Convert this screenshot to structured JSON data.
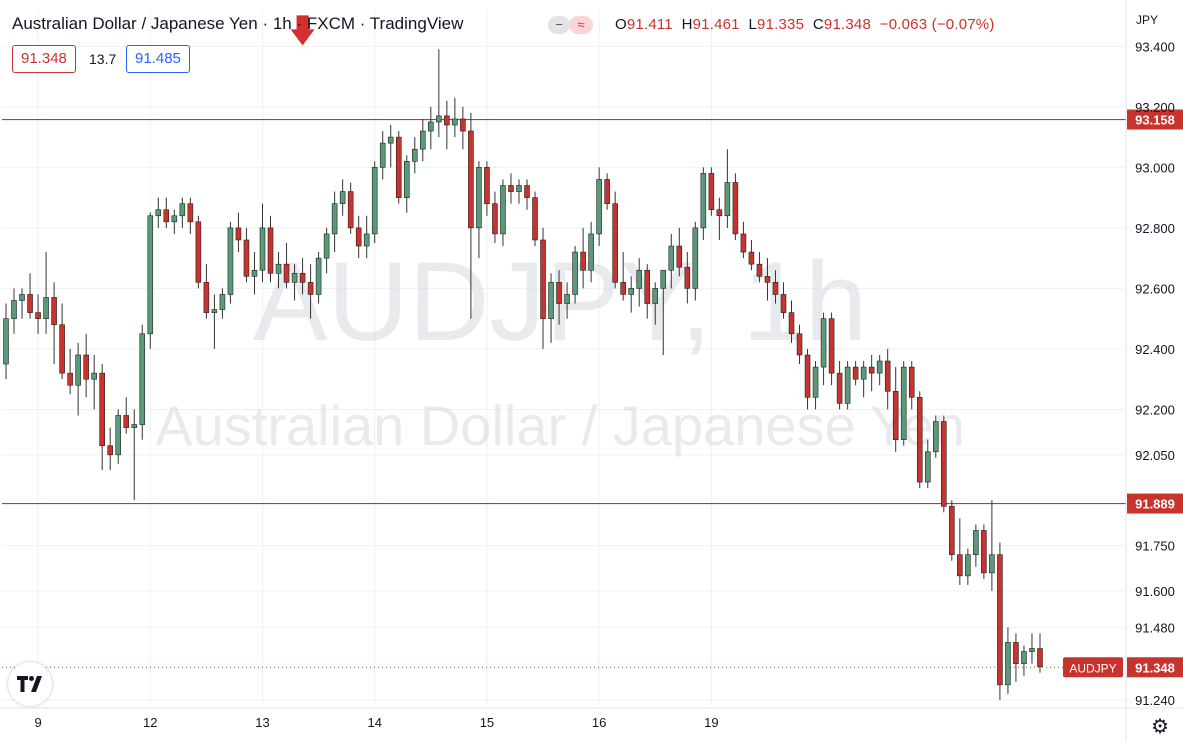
{
  "header": {
    "title": "Australian Dollar / Japanese Yen · 1h · FXCM · TradingView",
    "ohlc": {
      "o_label": "O",
      "o": "91.411",
      "h_label": "H",
      "h": "91.461",
      "l_label": "L",
      "l": "91.335",
      "c_label": "C",
      "c": "91.348",
      "change": "−0.063 (−0.07%)"
    },
    "pill_minus": "−",
    "pill_wave": "≈"
  },
  "badges": {
    "bid": "91.348",
    "spread": "13.7",
    "ask": "91.485"
  },
  "currency": "JPY",
  "watermark": {
    "symbol": "AUDJPY, 1h",
    "name": "Australian Dollar / Japanese Yen"
  },
  "colors": {
    "up": "#5b9a78",
    "down": "#c8332e",
    "level": "#c8332e",
    "grid": "#eef0f3",
    "text": "#131722",
    "ask": "#2962ff"
  },
  "icons": {
    "logo": "tradingview-logo-icon",
    "settings": "gear-icon",
    "arrow": "arrow-down-icon"
  },
  "chart_data": {
    "type": "candlestick",
    "title": "Australian Dollar / Japanese Yen · 1h · FXCM · TradingView",
    "ylim": [
      91.22,
      93.52
    ],
    "y_ticks": [
      "93.400",
      "93.200",
      "93.000",
      "92.800",
      "92.600",
      "92.400",
      "92.200",
      "92.050",
      "91.750",
      "91.600",
      "91.480",
      "91.240"
    ],
    "x_ticks": [
      {
        "label": "9",
        "index": 4
      },
      {
        "label": "12",
        "index": 18
      },
      {
        "label": "13",
        "index": 32
      },
      {
        "label": "14",
        "index": 46
      },
      {
        "label": "15",
        "index": 60
      },
      {
        "label": "16",
        "index": 74
      },
      {
        "label": "19",
        "index": 88
      }
    ],
    "horizontal_levels": [
      {
        "value": 93.158,
        "label": "93.158"
      },
      {
        "value": 91.889,
        "label": "91.889"
      }
    ],
    "last_price": {
      "value": 91.348,
      "label": "91.348",
      "symbol": "AUDJPY"
    },
    "annotation": {
      "type": "arrow-down",
      "at_index": 37,
      "price": 93.39
    },
    "candles": [
      [
        92.35,
        92.55,
        92.3,
        92.5
      ],
      [
        92.5,
        92.6,
        92.45,
        92.56
      ],
      [
        92.56,
        92.6,
        92.5,
        92.58
      ],
      [
        92.58,
        92.65,
        92.5,
        92.52
      ],
      [
        92.52,
        92.58,
        92.45,
        92.5
      ],
      [
        92.5,
        92.72,
        92.45,
        92.57
      ],
      [
        92.57,
        92.62,
        92.35,
        92.48
      ],
      [
        92.48,
        92.55,
        92.3,
        92.32
      ],
      [
        92.32,
        92.4,
        92.25,
        92.28
      ],
      [
        92.28,
        92.42,
        92.18,
        92.38
      ],
      [
        92.38,
        92.45,
        92.24,
        92.3
      ],
      [
        92.3,
        92.38,
        92.2,
        92.32
      ],
      [
        92.32,
        92.35,
        92.0,
        92.08
      ],
      [
        92.08,
        92.14,
        92.0,
        92.05
      ],
      [
        92.05,
        92.2,
        92.02,
        92.18
      ],
      [
        92.18,
        92.24,
        92.12,
        92.14
      ],
      [
        92.14,
        92.2,
        91.9,
        92.15
      ],
      [
        92.15,
        92.48,
        92.1,
        92.45
      ],
      [
        92.45,
        92.85,
        92.4,
        92.84
      ],
      [
        92.84,
        92.9,
        92.8,
        92.86
      ],
      [
        92.86,
        92.9,
        92.8,
        92.82
      ],
      [
        92.82,
        92.86,
        92.78,
        92.84
      ],
      [
        92.84,
        92.9,
        92.8,
        92.88
      ],
      [
        92.88,
        92.9,
        92.78,
        92.82
      ],
      [
        92.82,
        92.84,
        92.6,
        92.62
      ],
      [
        92.62,
        92.68,
        92.5,
        92.52
      ],
      [
        92.52,
        92.58,
        92.4,
        92.53
      ],
      [
        92.53,
        92.6,
        92.5,
        92.58
      ],
      [
        92.58,
        92.82,
        92.55,
        92.8
      ],
      [
        92.8,
        92.85,
        92.72,
        92.76
      ],
      [
        92.76,
        92.8,
        92.62,
        92.64
      ],
      [
        92.64,
        92.72,
        92.58,
        92.66
      ],
      [
        92.66,
        92.88,
        92.62,
        92.8
      ],
      [
        92.8,
        92.84,
        92.62,
        92.65
      ],
      [
        92.65,
        92.72,
        92.6,
        92.68
      ],
      [
        92.68,
        92.75,
        92.6,
        92.62
      ],
      [
        92.62,
        92.68,
        92.56,
        92.65
      ],
      [
        92.65,
        92.7,
        92.58,
        92.62
      ],
      [
        92.62,
        92.68,
        92.5,
        92.58
      ],
      [
        92.58,
        92.72,
        92.55,
        92.7
      ],
      [
        92.7,
        92.8,
        92.65,
        92.78
      ],
      [
        92.78,
        92.92,
        92.72,
        92.88
      ],
      [
        92.88,
        92.96,
        92.84,
        92.92
      ],
      [
        92.92,
        92.95,
        92.78,
        92.8
      ],
      [
        92.8,
        92.84,
        92.7,
        92.74
      ],
      [
        92.74,
        92.84,
        92.7,
        92.78
      ],
      [
        92.78,
        93.02,
        92.75,
        93.0
      ],
      [
        93.0,
        93.12,
        92.96,
        93.08
      ],
      [
        93.08,
        93.14,
        93.0,
        93.1
      ],
      [
        93.1,
        93.12,
        92.88,
        92.9
      ],
      [
        92.9,
        93.04,
        92.85,
        93.02
      ],
      [
        93.02,
        93.1,
        92.98,
        93.06
      ],
      [
        93.06,
        93.16,
        93.02,
        93.12
      ],
      [
        93.12,
        93.2,
        93.06,
        93.15
      ],
      [
        93.15,
        93.39,
        93.1,
        93.17
      ],
      [
        93.17,
        93.22,
        93.06,
        93.14
      ],
      [
        93.14,
        93.23,
        93.1,
        93.16
      ],
      [
        93.16,
        93.2,
        93.06,
        93.12
      ],
      [
        93.12,
        93.18,
        92.5,
        92.8
      ],
      [
        92.8,
        93.02,
        92.7,
        93.0
      ],
      [
        93.0,
        93.02,
        92.84,
        92.88
      ],
      [
        92.88,
        92.92,
        92.75,
        92.78
      ],
      [
        92.78,
        92.96,
        92.74,
        92.94
      ],
      [
        92.94,
        92.98,
        92.88,
        92.92
      ],
      [
        92.92,
        92.96,
        92.88,
        92.94
      ],
      [
        92.94,
        92.96,
        92.86,
        92.9
      ],
      [
        92.9,
        92.92,
        92.74,
        92.76
      ],
      [
        92.76,
        92.8,
        92.4,
        92.5
      ],
      [
        92.5,
        92.65,
        92.42,
        92.62
      ],
      [
        92.62,
        92.66,
        92.48,
        92.55
      ],
      [
        92.55,
        92.62,
        92.5,
        92.58
      ],
      [
        92.58,
        92.74,
        92.55,
        92.72
      ],
      [
        92.72,
        92.8,
        92.6,
        92.66
      ],
      [
        92.66,
        92.82,
        92.62,
        92.78
      ],
      [
        92.78,
        93.0,
        92.74,
        92.96
      ],
      [
        92.96,
        92.98,
        92.86,
        92.88
      ],
      [
        92.88,
        92.92,
        92.6,
        92.62
      ],
      [
        92.62,
        92.72,
        92.56,
        92.58
      ],
      [
        92.58,
        92.64,
        92.52,
        92.6
      ],
      [
        92.6,
        92.7,
        92.54,
        92.66
      ],
      [
        92.66,
        92.68,
        92.5,
        92.55
      ],
      [
        92.55,
        92.62,
        92.48,
        92.6
      ],
      [
        92.6,
        92.66,
        92.38,
        92.66
      ],
      [
        92.66,
        92.78,
        92.6,
        92.74
      ],
      [
        92.74,
        92.8,
        92.64,
        92.67
      ],
      [
        92.67,
        92.72,
        92.55,
        92.6
      ],
      [
        92.6,
        92.82,
        92.56,
        92.8
      ],
      [
        92.8,
        93.0,
        92.76,
        92.98
      ],
      [
        92.98,
        93.0,
        92.84,
        92.86
      ],
      [
        92.86,
        92.9,
        92.76,
        92.84
      ],
      [
        92.84,
        93.06,
        92.8,
        92.95
      ],
      [
        92.95,
        92.98,
        92.76,
        92.78
      ],
      [
        92.78,
        92.82,
        92.7,
        92.72
      ],
      [
        92.72,
        92.76,
        92.66,
        92.68
      ],
      [
        92.68,
        92.72,
        92.62,
        92.64
      ],
      [
        92.64,
        92.7,
        92.56,
        92.62
      ],
      [
        92.62,
        92.66,
        92.55,
        92.58
      ],
      [
        92.58,
        92.62,
        92.5,
        92.52
      ],
      [
        92.52,
        92.56,
        92.42,
        92.45
      ],
      [
        92.45,
        92.48,
        92.35,
        92.38
      ],
      [
        92.38,
        92.4,
        92.2,
        92.24
      ],
      [
        92.24,
        92.36,
        92.2,
        92.34
      ],
      [
        92.34,
        92.52,
        92.28,
        92.5
      ],
      [
        92.5,
        92.52,
        92.28,
        92.32
      ],
      [
        92.32,
        92.36,
        92.2,
        92.22
      ],
      [
        92.22,
        92.36,
        92.2,
        92.34
      ],
      [
        92.34,
        92.36,
        92.28,
        92.3
      ],
      [
        92.3,
        92.36,
        92.24,
        92.34
      ],
      [
        92.34,
        92.38,
        92.26,
        92.32
      ],
      [
        92.32,
        92.38,
        92.28,
        92.36
      ],
      [
        92.36,
        92.4,
        92.2,
        92.26
      ],
      [
        92.26,
        92.34,
        92.06,
        92.1
      ],
      [
        92.1,
        92.36,
        92.08,
        92.34
      ],
      [
        92.34,
        92.36,
        92.2,
        92.24
      ],
      [
        92.24,
        92.26,
        91.94,
        91.96
      ],
      [
        91.96,
        92.1,
        91.94,
        92.06
      ],
      [
        92.06,
        92.18,
        92.04,
        92.16
      ],
      [
        92.16,
        92.18,
        91.86,
        91.88
      ],
      [
        91.88,
        91.9,
        91.7,
        91.72
      ],
      [
        91.72,
        91.84,
        91.62,
        91.65
      ],
      [
        91.65,
        91.74,
        91.62,
        91.72
      ],
      [
        91.72,
        91.82,
        91.68,
        91.8
      ],
      [
        91.8,
        91.82,
        91.64,
        91.66
      ],
      [
        91.66,
        91.9,
        91.6,
        91.72
      ],
      [
        91.72,
        91.76,
        91.24,
        91.29
      ],
      [
        91.29,
        91.48,
        91.26,
        91.43
      ],
      [
        91.43,
        91.46,
        91.3,
        91.36
      ],
      [
        91.36,
        91.42,
        91.32,
        91.4
      ],
      [
        91.4,
        91.46,
        91.36,
        91.41
      ],
      [
        91.41,
        91.46,
        91.33,
        91.35
      ]
    ]
  }
}
